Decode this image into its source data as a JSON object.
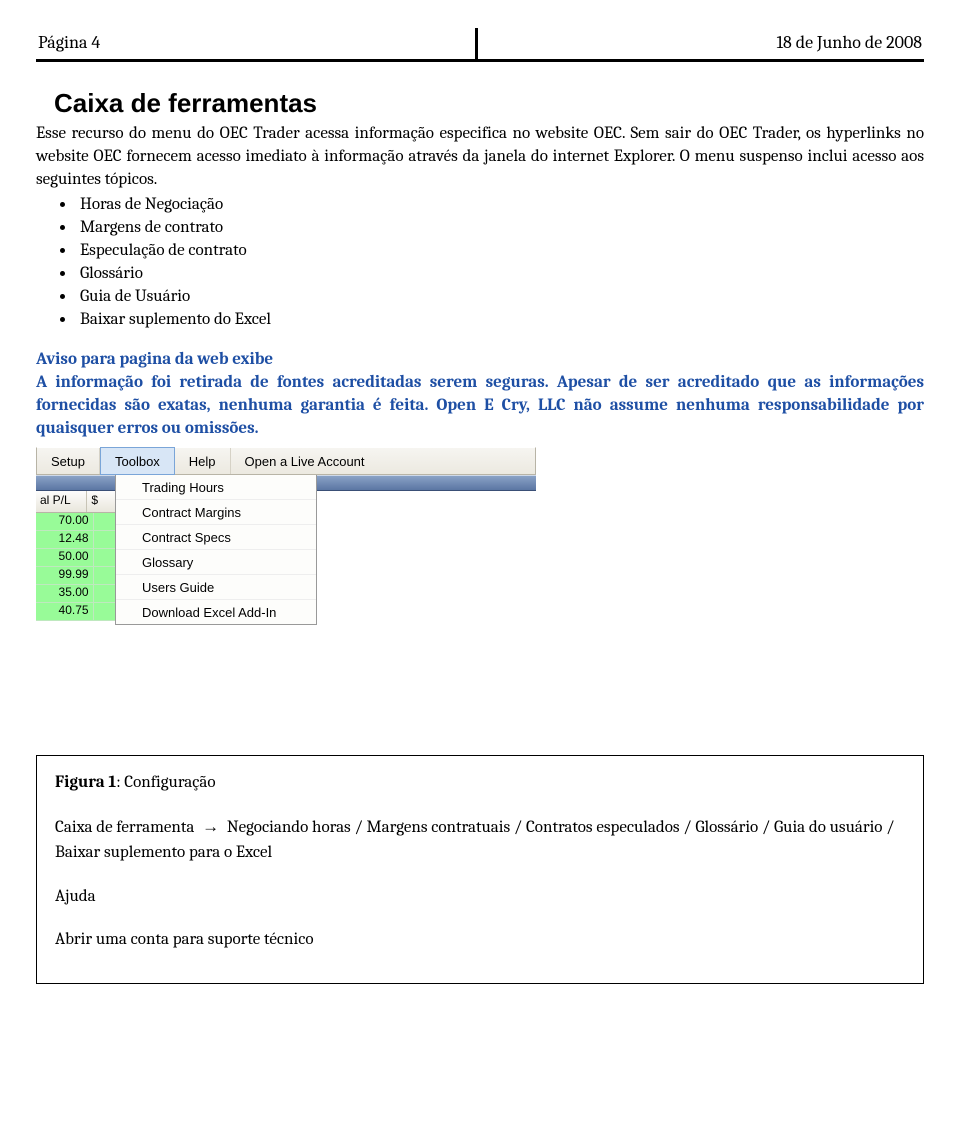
{
  "header": {
    "left": "Página 4",
    "right": "18 de Junho de 2008"
  },
  "section_title": "Caixa de ferramentas",
  "paragraph": "Esse recurso do menu do OEC Trader acessa informação especifica no website OEC. Sem sair do OEC Trader, os hyperlinks no website OEC fornecem acesso imediato à informação através da janela do internet Explorer. O menu suspenso inclui acesso aos seguintes tópicos.",
  "bullets": [
    "Horas de Negociação",
    "Margens de contrato",
    "Especulação de contrato",
    "Glossário",
    "Guia de Usuário",
    "Baixar suplemento do Excel"
  ],
  "notice_title": "Aviso para pagina da web exibe",
  "notice_body": "A informação foi retirada de fontes acreditadas serem seguras. Apesar de ser acreditado que as informações fornecidas são exatas, nenhuma garantia é feita. Open E Cry, LLC não assume nenhuma responsabilidade por quaisquer erros ou omissões.",
  "screenshot": {
    "menubar": {
      "items": [
        "Setup",
        "Toolbox",
        "Help",
        "Open a Live Account"
      ],
      "active_index": 1
    },
    "grid_head": {
      "col1": "al P/L",
      "col2": "$"
    },
    "grid_rows": [
      "70.00",
      "12.48",
      "50.00",
      "99.99",
      "35.00",
      "40.75"
    ],
    "dropdown": [
      "Trading Hours",
      "Contract Margins",
      "Contract Specs",
      "Glossary",
      "Users Guide",
      "Download Excel Add-In"
    ],
    "colors": {
      "menubar_bg_top": "#f6f5f1",
      "menubar_bg_bottom": "#ece9e0",
      "menu_active_bg": "#d8e6f6",
      "menu_active_border": "#7aa5d8",
      "blue_band_top": "#8aa2c6",
      "blue_band_bottom": "#5b76a3",
      "grid_cell_bg": "#98fb98",
      "dropdown_bg": "#fdfdfb",
      "dropdown_border": "#999999"
    }
  },
  "figure": {
    "caption_label": "Figura 1",
    "caption_text": ": Configuração",
    "line1_prefix": "Caixa de ferramenta",
    "line1_rest": "Negociando horas / Margens contratuais / Contratos especulados / Glossário / Guia do usuário / Baixar suplemento para o Excel",
    "line2": "Ajuda",
    "line3": "Abrir uma conta para suporte técnico",
    "arrow": "→"
  },
  "colors": {
    "notice_color": "#1e4fa4"
  }
}
